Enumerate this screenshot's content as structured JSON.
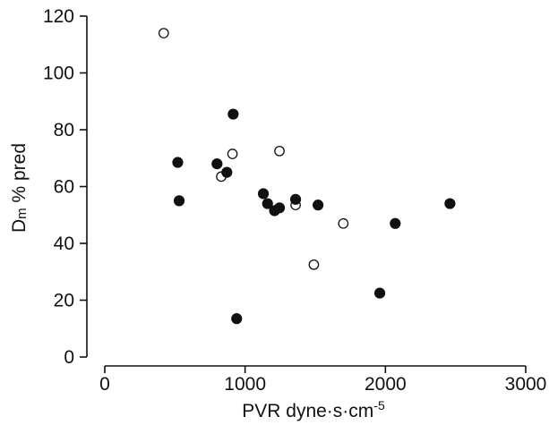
{
  "chart_data": {
    "type": "scatter",
    "xlabel": {
      "main": "PVR  dyne·s·cm",
      "superscript": "-5"
    },
    "ylabel": {
      "main": "D",
      "subscript": "m",
      "rest": "  % pred"
    },
    "xlim": [
      0,
      3000
    ],
    "ylim": [
      0,
      120
    ],
    "x_ticks": [
      0,
      1000,
      2000,
      3000
    ],
    "y_ticks": [
      0,
      20,
      40,
      60,
      80,
      100,
      120
    ],
    "grid": false,
    "legend": "none",
    "series": [
      {
        "marker": "open-circle",
        "points": [
          {
            "x": 420,
            "y": 114
          },
          {
            "x": 830,
            "y": 63.5
          },
          {
            "x": 910,
            "y": 71.5
          },
          {
            "x": 1245,
            "y": 72.5
          },
          {
            "x": 1360,
            "y": 53.5
          },
          {
            "x": 1490,
            "y": 32.5
          },
          {
            "x": 1700,
            "y": 47
          }
        ]
      },
      {
        "marker": "filled-circle",
        "points": [
          {
            "x": 520,
            "y": 68.5
          },
          {
            "x": 530,
            "y": 55
          },
          {
            "x": 800,
            "y": 68
          },
          {
            "x": 870,
            "y": 65
          },
          {
            "x": 915,
            "y": 85.5
          },
          {
            "x": 940,
            "y": 13.5
          },
          {
            "x": 1130,
            "y": 57.5
          },
          {
            "x": 1160,
            "y": 54
          },
          {
            "x": 1210,
            "y": 51.5
          },
          {
            "x": 1245,
            "y": 52.5
          },
          {
            "x": 1360,
            "y": 55.5
          },
          {
            "x": 1520,
            "y": 53.5
          },
          {
            "x": 1960,
            "y": 22.5
          },
          {
            "x": 2070,
            "y": 47
          },
          {
            "x": 2460,
            "y": 54
          }
        ]
      }
    ]
  }
}
